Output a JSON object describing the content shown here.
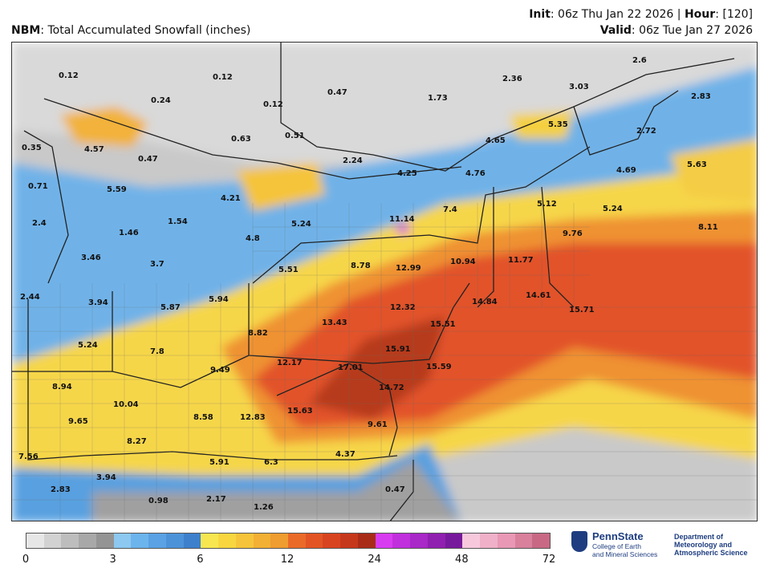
{
  "header": {
    "model": "NBM",
    "product": ": Total Accumulated Snowfall (inches)",
    "init_label": "Init",
    "init_value": ": 06z Thu Jan 22 2026 | ",
    "hour_label": "Hour",
    "hour_value": ": [120]",
    "valid_label": "Valid",
    "valid_value": ": 06z Tue Jan 27 2026"
  },
  "map": {
    "values": [
      {
        "text": "0.12"
      },
      {
        "text": "0.12"
      },
      {
        "text": "0.24"
      },
      {
        "text": "0.12"
      },
      {
        "text": "0.47"
      },
      {
        "text": "1.73"
      },
      {
        "text": "2.36"
      },
      {
        "text": "3.03"
      },
      {
        "text": "2.6"
      },
      {
        "text": "2.83"
      },
      {
        "text": "0.35"
      },
      {
        "text": "4.57"
      },
      {
        "text": "0.47"
      },
      {
        "text": "0.63"
      },
      {
        "text": "0.51"
      },
      {
        "text": "2.24"
      },
      {
        "text": "4.65"
      },
      {
        "text": "5.35"
      },
      {
        "text": "2.72"
      },
      {
        "text": "0.71"
      },
      {
        "text": "5.59"
      },
      {
        "text": "4.21"
      },
      {
        "text": "4.25"
      },
      {
        "text": "4.76"
      },
      {
        "text": "4.69"
      },
      {
        "text": "5.63"
      },
      {
        "text": "2.4"
      },
      {
        "text": "1.54"
      },
      {
        "text": "1.46"
      },
      {
        "text": "5.24"
      },
      {
        "text": "11.14"
      },
      {
        "text": "7.4"
      },
      {
        "text": "5.12"
      },
      {
        "text": "5.24"
      },
      {
        "text": "8.11"
      },
      {
        "text": "4.8"
      },
      {
        "text": "9.76"
      },
      {
        "text": "3.46"
      },
      {
        "text": "3.7"
      },
      {
        "text": "5.51"
      },
      {
        "text": "8.78"
      },
      {
        "text": "12.99"
      },
      {
        "text": "10.94"
      },
      {
        "text": "11.77"
      },
      {
        "text": "2.44"
      },
      {
        "text": "3.94"
      },
      {
        "text": "5.87"
      },
      {
        "text": "5.94"
      },
      {
        "text": "14.84"
      },
      {
        "text": "14.61"
      },
      {
        "text": "15.71"
      },
      {
        "text": "12.32"
      },
      {
        "text": "8.82"
      },
      {
        "text": "13.43"
      },
      {
        "text": "15.51"
      },
      {
        "text": "5.24"
      },
      {
        "text": "7.8"
      },
      {
        "text": "15.91"
      },
      {
        "text": "12.17"
      },
      {
        "text": "17.01"
      },
      {
        "text": "15.59"
      },
      {
        "text": "9.49"
      },
      {
        "text": "8.94"
      },
      {
        "text": "14.72"
      },
      {
        "text": "10.04"
      },
      {
        "text": "15.63"
      },
      {
        "text": "8.58"
      },
      {
        "text": "12.83"
      },
      {
        "text": "9.65"
      },
      {
        "text": "9.61"
      },
      {
        "text": "8.27"
      },
      {
        "text": "7.56"
      },
      {
        "text": "4.37"
      },
      {
        "text": "5.91"
      },
      {
        "text": "6.3"
      },
      {
        "text": "3.94"
      },
      {
        "text": "2.83"
      },
      {
        "text": "0.47"
      },
      {
        "text": "0.98"
      },
      {
        "text": "2.17"
      },
      {
        "text": "1.26"
      }
    ]
  },
  "legend": {
    "colors": [
      "#e6e6e6",
      "#d2d2d2",
      "#bdbdbd",
      "#a8a8a8",
      "#949494",
      "#8cc8f0",
      "#6cb4ec",
      "#5aa2e4",
      "#4c92d8",
      "#3e80cc",
      "#f7e650",
      "#f7d640",
      "#f5c43a",
      "#f2b034",
      "#ef9c30",
      "#ea6a2a",
      "#e25424",
      "#d84420",
      "#c6381c",
      "#a82c18",
      "#d83cf0",
      "#c030dc",
      "#a828c8",
      "#9020b0",
      "#781a9c",
      "#f7c8dc",
      "#f0b0c8",
      "#e898b4",
      "#d8809c",
      "#c86884"
    ],
    "ticks": [
      "0",
      "3",
      "6",
      "12",
      "24",
      "48",
      "72"
    ]
  },
  "logos": {
    "pennstate_name": "PennState",
    "pennstate_sub1": "College of Earth",
    "pennstate_sub2": "and Mineral Sciences",
    "dept1": "Department of",
    "dept2": "Meteorology and",
    "dept3": "Atmospheric Science"
  }
}
